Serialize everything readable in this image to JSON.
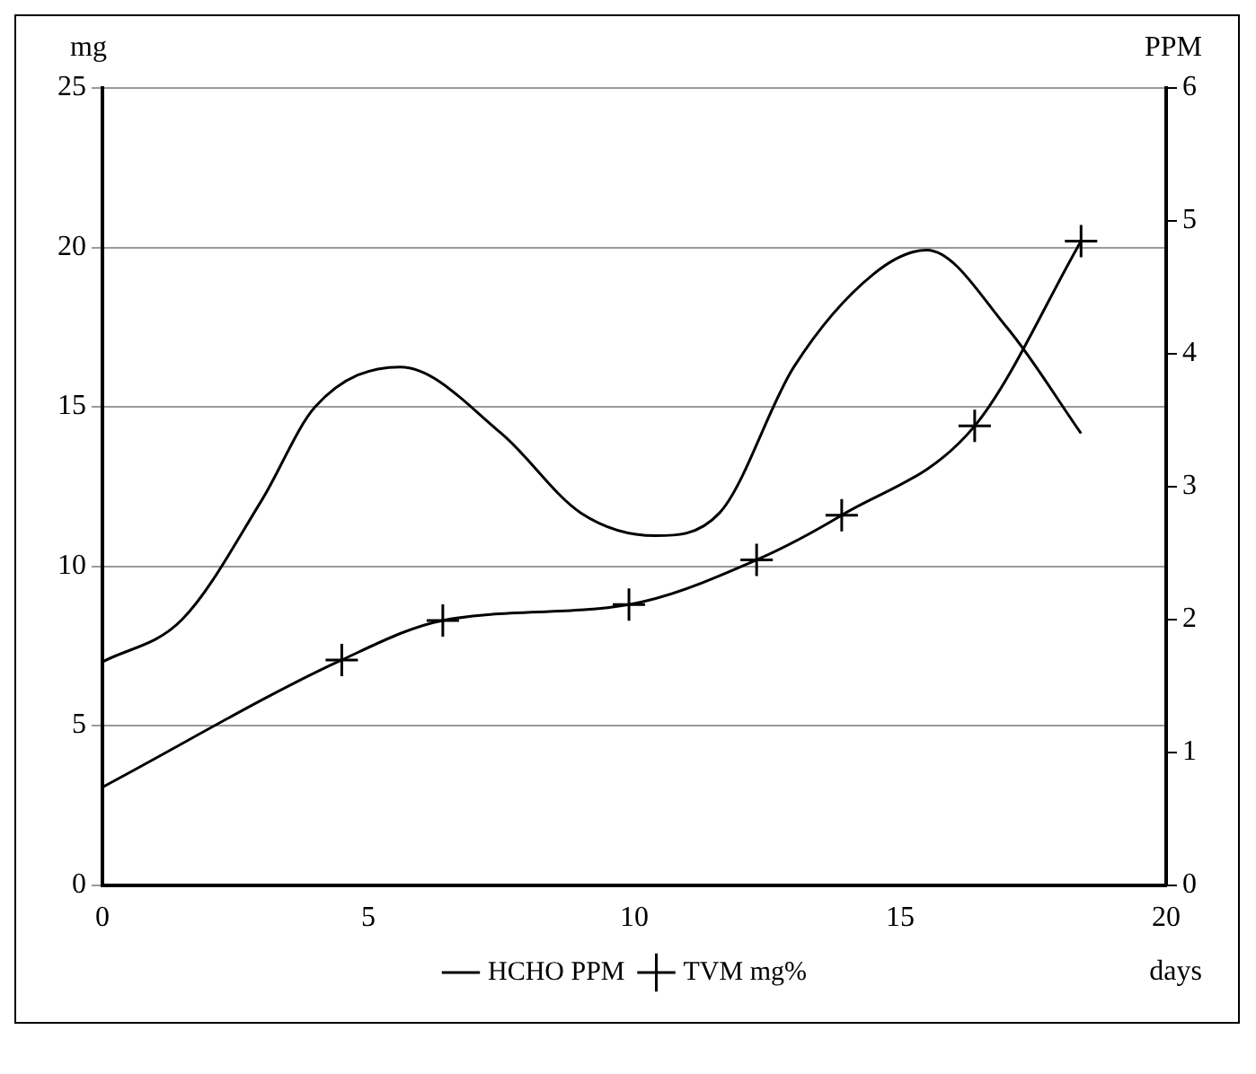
{
  "chart_data": {
    "type": "line",
    "xlabel": "days",
    "ylabel": "mg",
    "y2label": "PPM",
    "xlim": [
      0,
      20
    ],
    "xticks": [
      0,
      5,
      10,
      15,
      20
    ],
    "ylim": [
      0,
      25
    ],
    "yticks": [
      0,
      5,
      10,
      15,
      20,
      25
    ],
    "y2lim": [
      0,
      6
    ],
    "y2ticks": [
      0,
      1,
      2,
      3,
      4,
      5,
      6
    ],
    "grid": "y",
    "legend": "bottom",
    "series": [
      {
        "name": "HCHO PPM",
        "color": "#000000",
        "axis": "y2",
        "marker": "none",
        "x": [
          0,
          1.5,
          3,
          4,
          5.6,
          7.5,
          9,
          10.4,
          11.6,
          13,
          14.5,
          15.5,
          17,
          18.4
        ],
        "values": [
          1.68,
          2.0,
          2.9,
          3.6,
          3.9,
          3.4,
          2.8,
          2.63,
          2.8,
          3.9,
          4.6,
          4.78,
          4.2,
          3.4
        ]
      },
      {
        "name": "TVM mg%",
        "color": "#000000",
        "axis": "y",
        "marker": "cross",
        "x": [
          0,
          4.5,
          6.4,
          9.9,
          12.3,
          13.9,
          16.4,
          18.4
        ],
        "values": [
          3.07,
          7.06,
          8.3,
          8.8,
          10.2,
          11.6,
          14.4,
          20.2
        ]
      }
    ]
  }
}
